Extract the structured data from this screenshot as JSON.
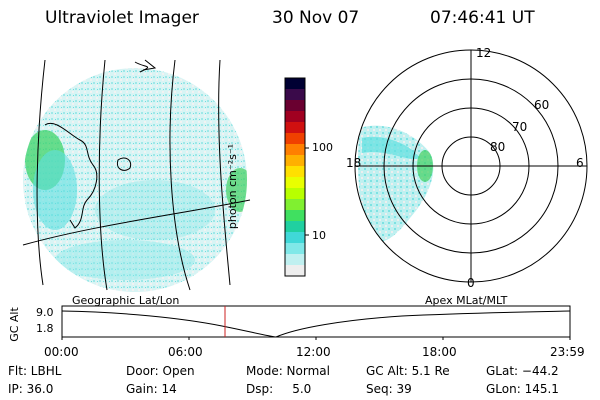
{
  "header": {
    "instrument": "Ultraviolet Imager",
    "date": "30 Nov 07",
    "time": "07:46:41 UT"
  },
  "maps": {
    "geographic_label": "Geographic Lat/Lon",
    "apex_label": "Apex MLat/MLT"
  },
  "colorbar": {
    "unit_label": "photon cm⁻²s⁻¹",
    "ticks": [
      "100",
      "10"
    ],
    "colors": [
      "#000033",
      "#3a0a4a",
      "#6a0030",
      "#a00020",
      "#d01010",
      "#f04000",
      "#ff7f00",
      "#ffb000",
      "#ffe000",
      "#e8ff00",
      "#b8ff00",
      "#80f030",
      "#40e060",
      "#20d0a0",
      "#40d8d8",
      "#80e8e8",
      "#c0f0f0",
      "#eeeeee"
    ]
  },
  "polar": {
    "mlt_labels": [
      "12",
      "18",
      "6",
      "0"
    ],
    "mlat_labels": [
      "60",
      "70",
      "80"
    ]
  },
  "altitude_plot": {
    "ylabel": "GC Alt",
    "y_ticks": [
      "9.0",
      "1.8"
    ],
    "x_ticks": [
      "00:00",
      "06:00",
      "12:00",
      "18:00",
      "23:59"
    ]
  },
  "info": {
    "row1": [
      "Flt: LBHL",
      "Door: Open",
      "Mode: Normal",
      "GC Alt: 5.1 Re",
      "GLat: −44.2"
    ],
    "row2": [
      "IP: 36.0",
      "Gain: 14",
      "Dsp:     5.0",
      "Seq: 39",
      "GLon: 145.1"
    ]
  },
  "colors": {
    "emission_cyan": "#5fe0e0",
    "emission_green": "#40d060",
    "current_time_marker": "#cc2222"
  }
}
